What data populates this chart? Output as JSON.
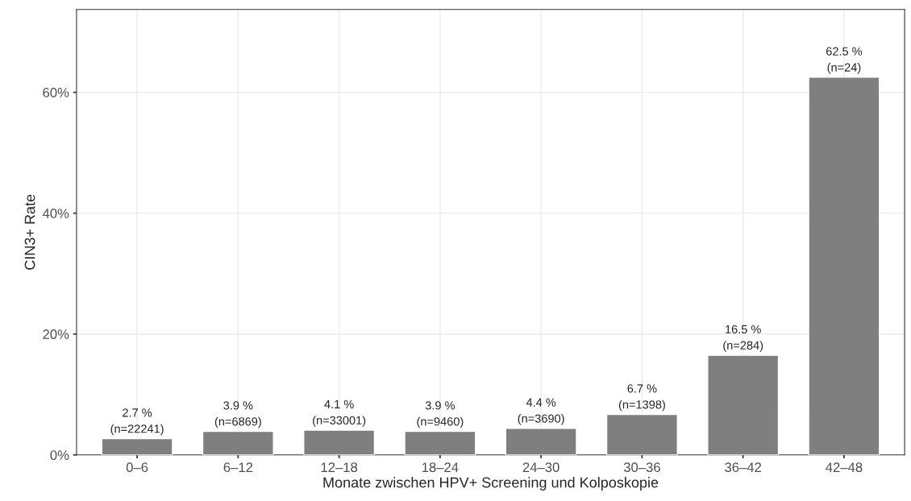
{
  "chart_data": {
    "type": "bar",
    "xlabel": "Monate zwischen HPV+ Screening und Kolposkopie",
    "ylabel": "CIN3+ Rate",
    "categories": [
      "0–6",
      "6–12",
      "12–18",
      "18–24",
      "24–30",
      "30–36",
      "36–42",
      "42–48"
    ],
    "values": [
      2.7,
      3.9,
      4.1,
      3.9,
      4.4,
      6.7,
      16.5,
      62.5
    ],
    "color": "#7f7f7f",
    "value_labels": [
      "2.7 %\n(n=22241)",
      "3.9 %\n(n=6869)",
      "4.1 %\n(n=33001)",
      "3.9 %\n(n=9460)",
      "4.4 %\n(n=3690)",
      "6.7 %\n(n=1398)",
      "16.5 %\n(n=284)",
      "62.5 %\n(n=24)"
    ],
    "ylim": [
      0,
      73.7
    ],
    "yticks": [
      {
        "value": 0,
        "label": "0%"
      },
      {
        "value": 20,
        "label": "20%"
      },
      {
        "value": 40,
        "label": "40%"
      },
      {
        "value": 60,
        "label": "60%"
      }
    ],
    "grid": true
  }
}
